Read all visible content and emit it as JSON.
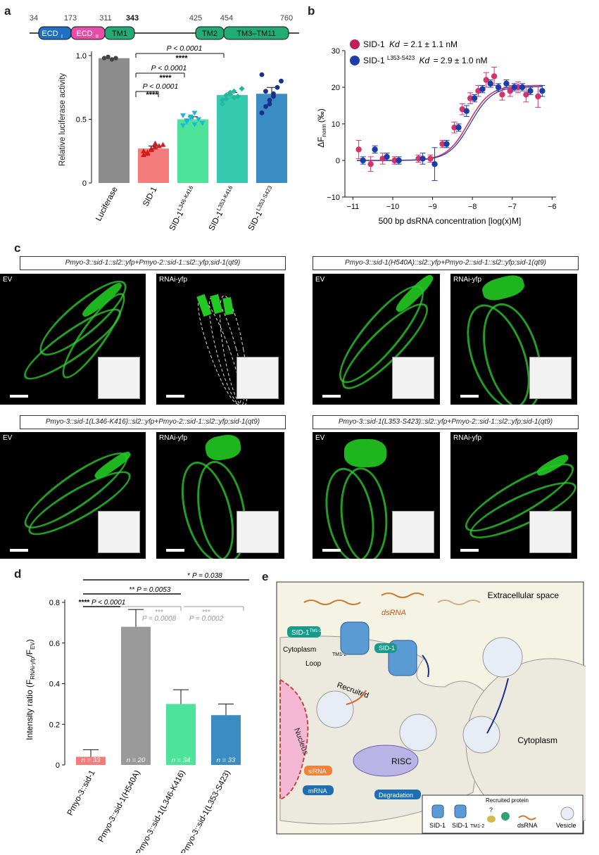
{
  "panel_letters": {
    "a": "a",
    "b": "b",
    "c": "c",
    "d": "d",
    "e": "e"
  },
  "panel_a": {
    "domain_positions": [
      "34",
      "173",
      "311",
      "343",
      "425",
      "454",
      "760"
    ],
    "domains": [
      "ECD",
      "ECD",
      "TM1",
      "TM2",
      "TM3–TM11"
    ],
    "domain_subscripts": [
      "I",
      "II"
    ],
    "domain_colors": [
      "#1f6fc2",
      "#e64fa8",
      "#22aa77",
      "#22aa77",
      "#22aa77"
    ],
    "significance": [
      {
        "p": "P < 0.0001",
        "stars": "****"
      },
      {
        "p": "P < 0.0001",
        "stars": "****"
      },
      {
        "p": "P < 0.0001",
        "stars": "****"
      }
    ]
  },
  "chart_data": [
    {
      "type": "bar",
      "panel": "a",
      "categories": [
        "Luciferase",
        "SID-1",
        "SID-1L346-K416",
        "SID-1L353-K416",
        "SID-1L353-S423"
      ],
      "category_labels": [
        {
          "main": "Luciferase",
          "sup": ""
        },
        {
          "main": "SID-1",
          "sup": ""
        },
        {
          "main": "SID-1",
          "sup": "L346-K416"
        },
        {
          "main": "SID-1",
          "sup": "L353-K416"
        },
        {
          "main": "SID-1",
          "sup": "L353-S423"
        }
      ],
      "values": [
        0.98,
        0.27,
        0.5,
        0.69,
        0.7
      ],
      "errors": [
        0.0,
        0.02,
        0.02,
        0.02,
        0.05
      ],
      "points": [
        [
          0.98,
          0.99,
          0.97,
          0.98
        ],
        [
          0.22,
          0.24,
          0.26,
          0.28,
          0.29,
          0.3,
          0.25,
          0.23,
          0.27,
          0.31
        ],
        [
          0.45,
          0.48,
          0.52,
          0.55,
          0.5,
          0.47,
          0.53,
          0.49,
          0.51,
          0.46
        ],
        [
          0.62,
          0.66,
          0.7,
          0.72,
          0.68,
          0.74,
          0.65,
          0.69,
          0.71,
          0.67
        ],
        [
          0.55,
          0.6,
          0.65,
          0.7,
          0.75,
          0.8,
          0.85,
          0.72,
          0.62,
          0.68
        ]
      ],
      "colors": [
        "#8c8c8c",
        "#f47c7c",
        "#4de39a",
        "#35c9b0",
        "#3a8cc2"
      ],
      "point_colors": [
        "#444444",
        "#d41a1a",
        "#1fb6d6",
        "#23b99a",
        "#1a2f8c"
      ],
      "ylabel": "Relative luciferase activity",
      "yticks": [
        "0",
        "0.5",
        "1.0"
      ],
      "ylim": [
        0,
        1.05
      ]
    },
    {
      "type": "scatter",
      "panel": "b",
      "legend": [
        {
          "name": "SID-1",
          "kd_label": "Kd",
          "text": "= 2.1 ± 1.1 nM",
          "color": "#c0205a"
        },
        {
          "name": "SID-1",
          "sup": "L353-S423",
          "kd_label": "Kd",
          "text": "= 2.9 ± 1.0 nM",
          "color": "#1a3da8"
        }
      ],
      "series": [
        {
          "name": "SID-1",
          "color": "#d6336c",
          "x": [
            -10.8,
            -10.5,
            -10.2,
            -9.9,
            -9.3,
            -9.0,
            -8.7,
            -8.4,
            -8.2,
            -8.0,
            -7.8,
            -7.6,
            -7.4,
            -7.2,
            -7.0,
            -6.8,
            -6.6,
            -6.3
          ],
          "y": [
            3,
            -1,
            0.5,
            0,
            0.5,
            0.5,
            4.5,
            9,
            14,
            17,
            19,
            22,
            23,
            18,
            19,
            20,
            18,
            17.5
          ],
          "err": [
            2.5,
            2,
            1.5,
            1,
            1,
            1,
            1,
            1.5,
            1.5,
            1.5,
            1.5,
            2,
            2.5,
            1.5,
            1.5,
            1.5,
            2,
            3
          ]
        },
        {
          "name": "SID-1L353-S423",
          "color": "#1a3da8",
          "x": [
            -10.8,
            -10.5,
            -10.2,
            -9.9,
            -9.3,
            -9.0,
            -8.7,
            -8.4,
            -8.2,
            -8.0,
            -7.8,
            -7.6,
            -7.4,
            -7.2,
            -7.0,
            -6.8,
            -6.6,
            -6.3
          ],
          "y": [
            0,
            3,
            1,
            0,
            0.5,
            -1,
            4.5,
            9,
            13.5,
            17,
            19.5,
            21,
            20,
            21,
            20,
            20,
            19,
            19
          ],
          "err": [
            1,
            1,
            1,
            1,
            1.5,
            4.5,
            1,
            1,
            1.5,
            1,
            1,
            1,
            1,
            1,
            1,
            1,
            1,
            1.5
          ]
        }
      ],
      "xlabel": "500 bp dsRNA concentration [log(x)M]",
      "ylabel": "ΔF",
      "ylabel_sub": "norm",
      "ylabel_unit": "(‰)",
      "xticks": [
        "−11",
        "−10",
        "−9",
        "−8",
        "−7",
        "−6"
      ],
      "yticks": [
        "−10",
        "0",
        "10",
        "20",
        "30"
      ],
      "xlim": [
        -11.2,
        -5.9
      ],
      "ylim": [
        -10,
        30
      ]
    },
    {
      "type": "bar",
      "panel": "d",
      "categories": [
        "Pmyo-3::sid-1",
        "Pmyo-3::sid-1(H540A)",
        "Pmyo-3::sid-1(L346-K416)",
        "Pmyo-3::sid-1(L353-S423)"
      ],
      "values": [
        0.04,
        0.68,
        0.3,
        0.245
      ],
      "errors": [
        0.035,
        0.085,
        0.07,
        0.055
      ],
      "n_labels": [
        "n = 33",
        "n = 20",
        "n = 34",
        "n = 33"
      ],
      "colors": [
        "#f47c7c",
        "#9a9a9a",
        "#4de39a",
        "#3a8cc2"
      ],
      "ylabel": "Intensity ratio (F",
      "ylabel_sub1": "RNAi-yfp",
      "ylabel_sub2": "EV",
      "yticks": [
        "0",
        "0.2",
        "0.4",
        "0.6",
        "0.8"
      ],
      "ylim": [
        0,
        0.8
      ],
      "significance": [
        {
          "stars": "*",
          "p": "P = 0.038"
        },
        {
          "stars": "**",
          "p": "P = 0.0053"
        },
        {
          "stars": "****",
          "p": "P < 0.0001"
        },
        {
          "stars": "***",
          "p": "P = 0.0008"
        },
        {
          "stars": "***",
          "p": "P = 0.0002"
        }
      ]
    }
  ],
  "panel_c": {
    "captions": [
      "Pmyo-3::sid-1::sl2::yfp+Pmyo-2::sid-1::sl2::yfp;sid-1(qt9)",
      "Pmyo-3::sid-1(H540A)::sl2::yfp+Pmyo-2::sid-1::sl2::yfp;sid-1(qt9)",
      "Pmyo-3::sid-1(L346-K416)::sl2::yfp+Pmyo-2::sid-1::sl2::yfp;sid-1(qt9)",
      "Pmyo-3::sid-1(L353-S423)::sl2::yfp+Pmyo-2::sid-1::sl2::yfp;sid-1(qt9)"
    ],
    "labels": [
      "EV",
      "RNAi-yfp",
      "EV",
      "RNAi-yfp",
      "EV",
      "RNAi-yfp",
      "EV",
      "RNAi-yfp"
    ]
  },
  "panel_e": {
    "extracellular": "Extracellular space",
    "dsrna": "dsRNA",
    "sid1_tm": "SID-1",
    "sid1_tm_sup": "TM1-2",
    "sid1": "SID-1",
    "cytoplasm_left": "Cytoplasm",
    "loop": "Loop",
    "tm_small": "TM1-2",
    "recruited": "Recruited",
    "nucleus": "Nucleus",
    "sirna": "siRNA",
    "mrna": "mRNA",
    "risc": "RISC",
    "degradation": "Degradation",
    "cytoplasm_right": "Cytoplasm",
    "legend": {
      "title": "Recruited protein",
      "sid1": "SID-1",
      "sid1_tm": "SID-1",
      "sid1_tm_sub": "TM1-2",
      "q": "?",
      "dsrna": "dsRNA",
      "vesicle": "Vesicle"
    }
  }
}
